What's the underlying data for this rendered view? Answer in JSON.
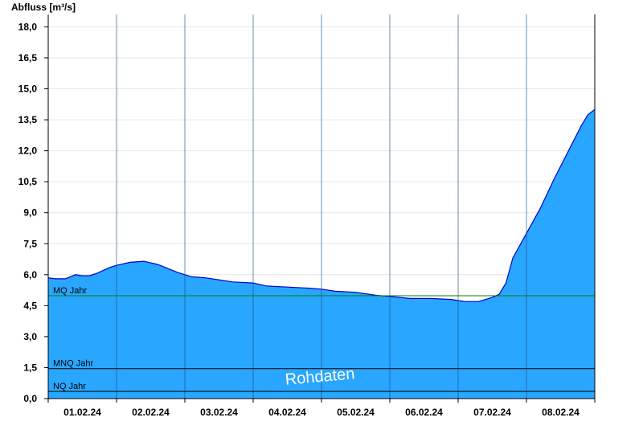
{
  "chart_data": {
    "type": "area",
    "ylabel": "Abfluss [m³/s]",
    "ylim": [
      0,
      18.6
    ],
    "yticks": [
      0.0,
      1.5,
      3.0,
      4.5,
      6.0,
      7.5,
      9.0,
      10.5,
      12.0,
      13.5,
      15.0,
      16.5,
      18.0
    ],
    "ytick_labels": [
      "0,0",
      "1,5",
      "3,0",
      "4,5",
      "6,0",
      "7,5",
      "9,0",
      "10,5",
      "12,0",
      "13,5",
      "15,0",
      "16,5",
      "18,0"
    ],
    "x_range": [
      0,
      8.0
    ],
    "x_unit": "days since 01.02.24 00:00",
    "xtick_labels": [
      "01.02.24",
      "02.02.24",
      "03.02.24",
      "04.02.24",
      "05.02.24",
      "06.02.24",
      "07.02.24",
      "08.02.24"
    ],
    "grid": true,
    "series": [
      {
        "name": "Abfluss",
        "color": "#29a6ff",
        "line_color": "#0000cc",
        "x": [
          0.0,
          0.1,
          0.25,
          0.4,
          0.5,
          0.6,
          0.7,
          0.8,
          0.9,
          1.0,
          1.2,
          1.4,
          1.6,
          1.75,
          1.9,
          2.1,
          2.3,
          2.5,
          2.7,
          3.0,
          3.2,
          3.5,
          3.8,
          4.0,
          4.2,
          4.5,
          4.8,
          5.0,
          5.3,
          5.6,
          5.9,
          6.1,
          6.3,
          6.5,
          6.6,
          6.7,
          6.8,
          7.0,
          7.2,
          7.4,
          7.6,
          7.8,
          7.9,
          8.0
        ],
        "values": [
          5.85,
          5.8,
          5.8,
          6.0,
          5.95,
          5.95,
          6.05,
          6.2,
          6.35,
          6.45,
          6.6,
          6.65,
          6.5,
          6.3,
          6.1,
          5.9,
          5.85,
          5.75,
          5.65,
          5.6,
          5.45,
          5.4,
          5.35,
          5.3,
          5.2,
          5.15,
          5.0,
          4.95,
          4.85,
          4.85,
          4.8,
          4.7,
          4.7,
          4.9,
          5.05,
          5.6,
          6.8,
          8.0,
          9.2,
          10.6,
          11.9,
          13.2,
          13.75,
          14.0
        ]
      }
    ],
    "reference_lines": [
      {
        "label": "MQ Jahr",
        "value": 4.98,
        "color": "#008000"
      },
      {
        "label": "MNQ Jahr",
        "value": 1.45,
        "color": "#000000"
      },
      {
        "label": "NQ Jahr",
        "value": 0.35,
        "color": "#000000"
      }
    ],
    "watermark": "Rohdaten"
  }
}
